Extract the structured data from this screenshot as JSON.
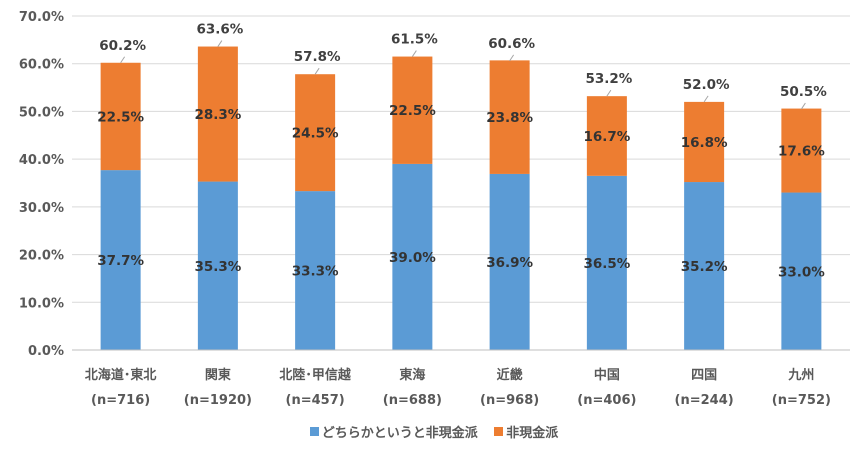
{
  "chart_data": {
    "type": "bar",
    "stacked": true,
    "categories": [
      {
        "name": "北海道･東北",
        "n": "(n=716)"
      },
      {
        "name": "関東",
        "n": "(n=1920)"
      },
      {
        "name": "北陸･甲信越",
        "n": "(n=457)"
      },
      {
        "name": "東海",
        "n": "(n=688)"
      },
      {
        "name": "近畿",
        "n": "(n=968)"
      },
      {
        "name": "中国",
        "n": "(n=406)"
      },
      {
        "name": "四国",
        "n": "(n=244)"
      },
      {
        "name": "九州",
        "n": "(n=752)"
      }
    ],
    "series": [
      {
        "name": "どちらかというと非現金派",
        "color": "#5B9BD5",
        "values": [
          37.7,
          35.3,
          33.3,
          39.0,
          36.9,
          36.5,
          35.2,
          33.0
        ],
        "labels": [
          "37.7%",
          "35.3%",
          "33.3%",
          "39.0%",
          "36.9%",
          "36.5%",
          "35.2%",
          "33.0%"
        ]
      },
      {
        "name": "非現金派",
        "color": "#ED7D31",
        "values": [
          22.5,
          28.3,
          24.5,
          22.5,
          23.8,
          16.7,
          16.8,
          17.6
        ],
        "labels": [
          "22.5%",
          "28.3%",
          "24.5%",
          "22.5%",
          "23.8%",
          "16.7%",
          "16.8%",
          "17.6%"
        ]
      }
    ],
    "totals": [
      60.2,
      63.6,
      57.8,
      61.5,
      60.6,
      53.2,
      52.0,
      50.5
    ],
    "total_labels": [
      "60.2%",
      "63.6%",
      "57.8%",
      "61.5%",
      "60.6%",
      "53.2%",
      "52.0%",
      "50.5%"
    ],
    "ylim": [
      0,
      70
    ],
    "yticks": [
      "0.0%",
      "10.0%",
      "20.0%",
      "30.0%",
      "40.0%",
      "50.0%",
      "60.0%",
      "70.0%"
    ],
    "grid": true,
    "legend": "bottom"
  }
}
